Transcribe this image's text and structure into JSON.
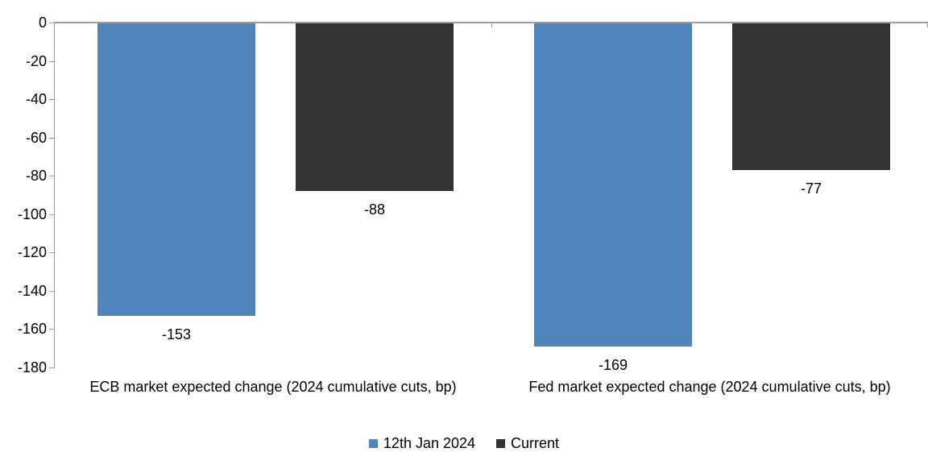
{
  "chart_data": {
    "type": "bar",
    "title": "",
    "categories": [
      "ECB market expected change (2024 cumulative cuts, bp)",
      "Fed market expected change (2024 cumulative cuts, bp)"
    ],
    "series": [
      {
        "name": "12th Jan 2024",
        "color": "#4E86BC",
        "values": [
          -153,
          -169
        ],
        "data_labels": [
          "-153",
          "-169"
        ]
      },
      {
        "name": "Current",
        "color": "#333333",
        "values": [
          -88,
          -77
        ],
        "data_labels": [
          "-88",
          "-77"
        ]
      }
    ],
    "ylim": [
      -180,
      0
    ],
    "yticks": [
      0,
      -20,
      -40,
      -60,
      -80,
      -100,
      -120,
      -140,
      -160,
      -180
    ],
    "grid": false,
    "legend_position": "bottom",
    "axis_color": "#9E9E9E",
    "text_color": "#000000",
    "background": "#FFFFFF"
  }
}
